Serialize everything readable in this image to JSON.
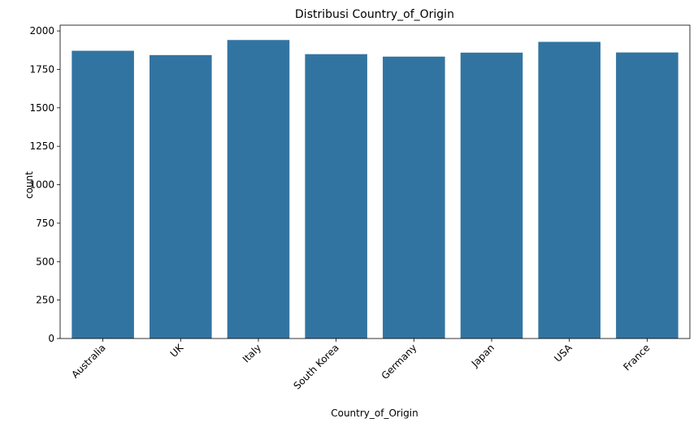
{
  "chart_data": {
    "type": "bar",
    "title": "Distribusi Country_of_Origin",
    "xlabel": "Country_of_Origin",
    "ylabel": "count",
    "categories": [
      "Australia",
      "UK",
      "Italy",
      "South Korea",
      "Germany",
      "Japan",
      "USA",
      "France"
    ],
    "values": [
      1871,
      1843,
      1941,
      1849,
      1833,
      1859,
      1929,
      1860
    ],
    "ylim": [
      0,
      2037.5
    ],
    "yticks": [
      0,
      250,
      500,
      750,
      1000,
      1250,
      1500,
      1750,
      2000
    ],
    "x_tick_rotation": 45,
    "bar_color": "#3274a1",
    "grid": false,
    "legend": "none"
  }
}
